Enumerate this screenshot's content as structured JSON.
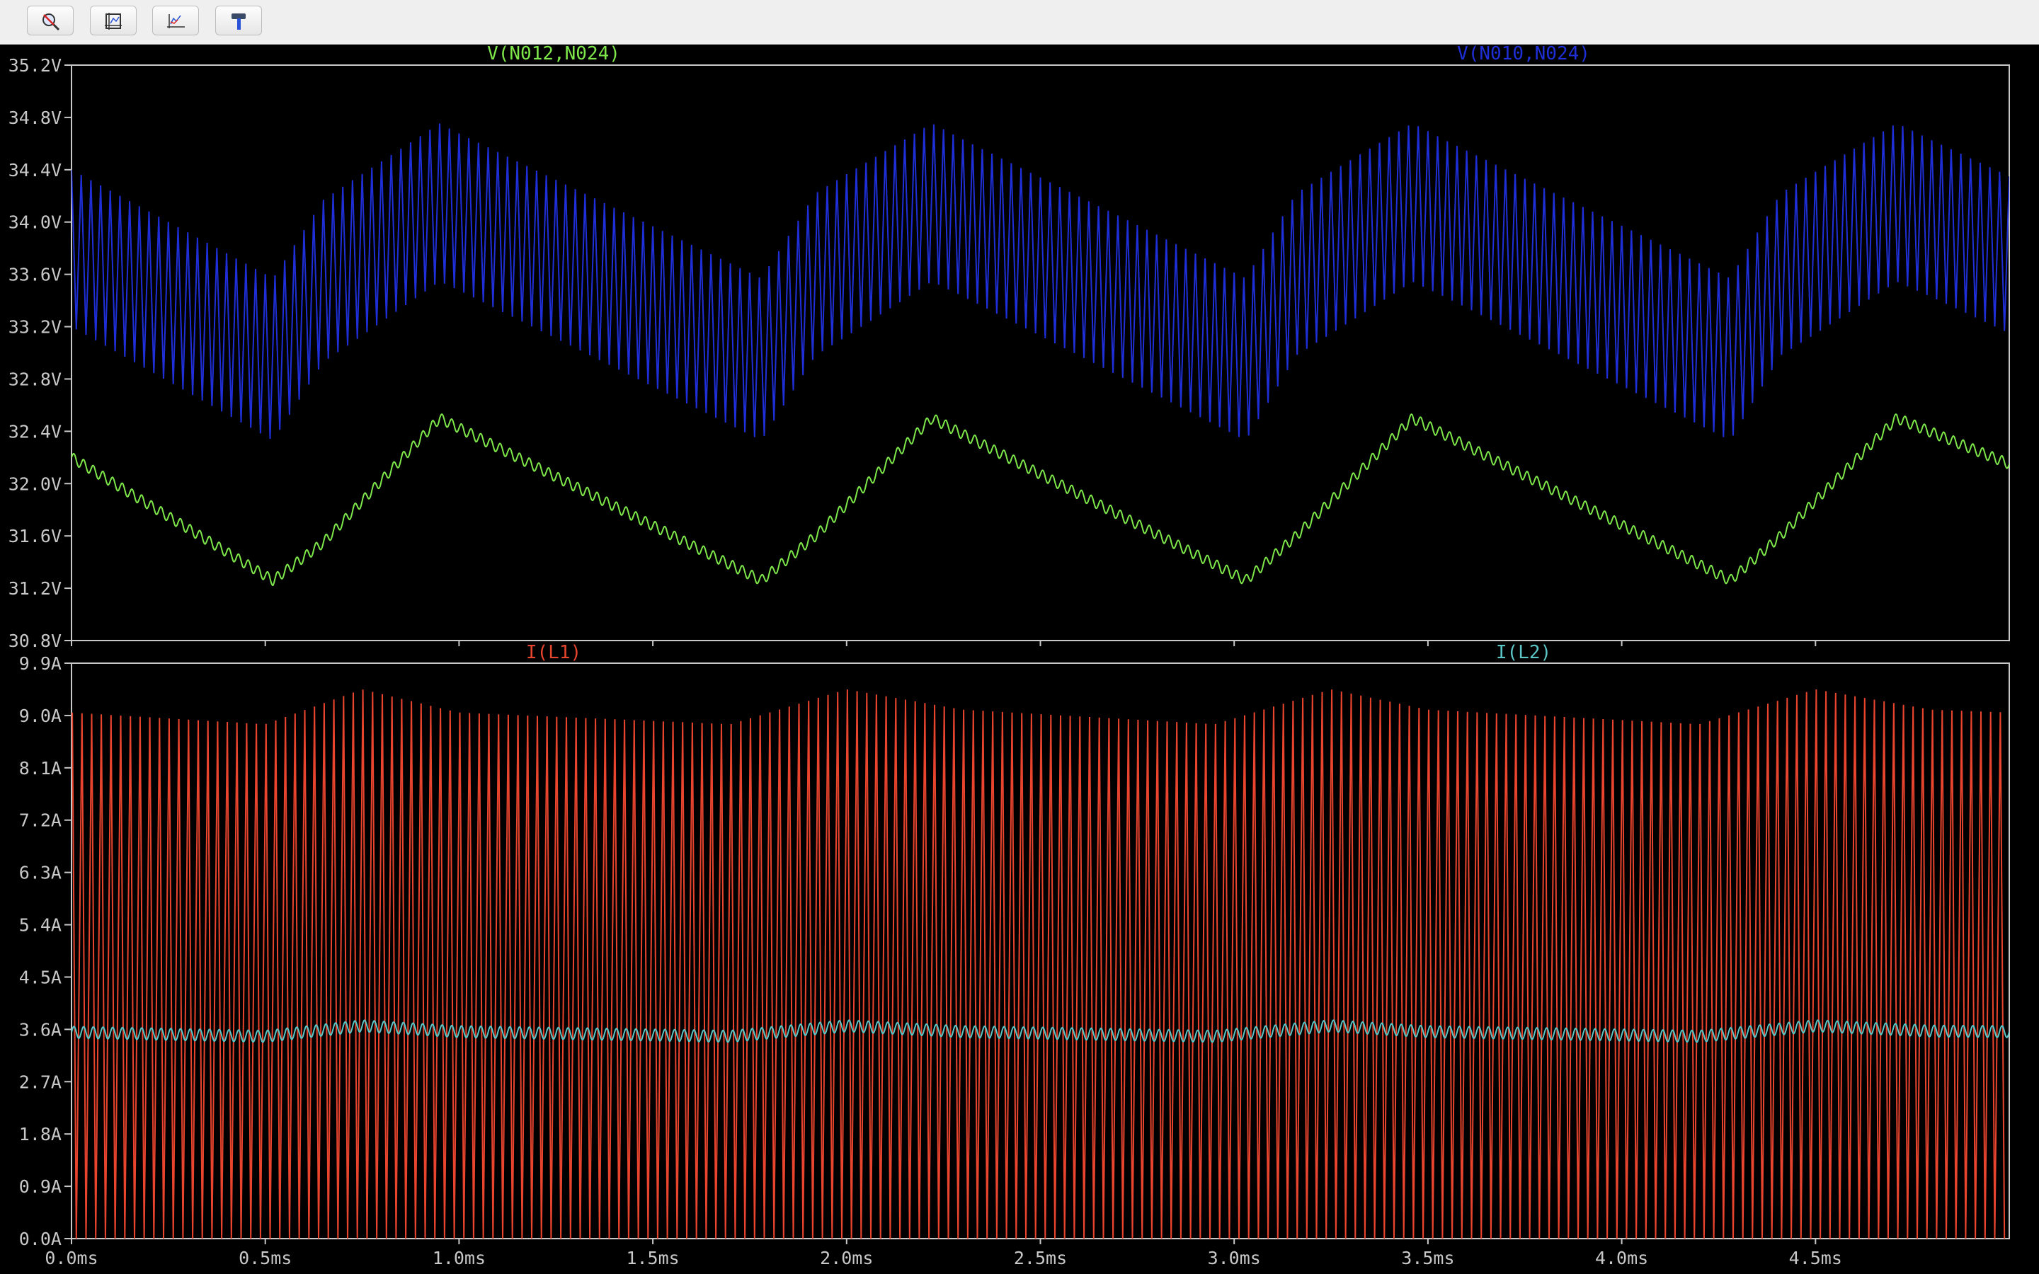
{
  "toolbar": {
    "buttons": [
      {
        "name": "autorange-zoom-icon"
      },
      {
        "name": "zoom-to-fit-icon"
      },
      {
        "name": "pan-waveform-icon"
      },
      {
        "name": "hammer-tool-icon"
      }
    ]
  },
  "colors": {
    "background": "#000000",
    "frame": "#c8c8c8",
    "axis_text": "#c8c8c8",
    "v_n012": "#7ee84a",
    "v_n010": "#1f2fd8",
    "i_l1": "#e8442e",
    "i_l2": "#5cc6c6"
  },
  "chart_data": [
    {
      "type": "line",
      "pane": "top",
      "xlabel": "",
      "ylabel": "",
      "xlim": [
        0,
        5.0
      ],
      "ylim": [
        30.8,
        35.2
      ],
      "x_ticks": [
        0.0,
        0.5,
        1.0,
        1.5,
        2.0,
        2.5,
        3.0,
        3.5,
        4.0,
        4.5
      ],
      "x_tick_labels": [
        "0.0ms",
        "0.5ms",
        "1.0ms",
        "1.5ms",
        "2.0ms",
        "2.5ms",
        "3.0ms",
        "3.5ms",
        "4.0ms",
        "4.5ms"
      ],
      "y_ticks": [
        35.2,
        34.8,
        34.4,
        34.0,
        33.6,
        33.2,
        32.8,
        32.4,
        32.0,
        31.6,
        31.2,
        30.8
      ],
      "y_tick_labels": [
        "35.2V",
        "34.8V",
        "34.4V",
        "34.0V",
        "33.6V",
        "33.2V",
        "32.8V",
        "32.4V",
        "32.0V",
        "31.6V",
        "31.2V",
        "30.8V"
      ],
      "grid": false,
      "series": [
        {
          "name": "V(N012,N024)",
          "color": "#7ee84a",
          "ripple_cycles_per_ms": 40,
          "ripple_amplitude_v": 0.04,
          "envelope": {
            "x": [
              0.0,
              0.52,
              0.65,
              0.95,
              1.78,
              1.92,
              2.22,
              3.03,
              3.16,
              3.46,
              4.28,
              4.41,
              4.71,
              5.0
            ],
            "y": [
              32.2,
              31.26,
              31.55,
              32.5,
              31.26,
              31.6,
              32.5,
              31.26,
              31.6,
              32.5,
              31.26,
              31.6,
              32.5,
              32.15
            ]
          }
        },
        {
          "name": "V(N010,N024)",
          "color": "#1f2fd8",
          "ripple_cycles_per_ms": 40,
          "center": {
            "x": [
              0.0,
              0.52,
              0.65,
              0.95,
              1.78,
              1.92,
              2.22,
              3.03,
              3.16,
              3.46,
              4.28,
              4.41,
              4.71,
              5.0
            ],
            "y": [
              33.8,
              32.95,
              33.55,
              34.15,
              32.95,
              33.6,
              34.15,
              32.95,
              33.6,
              34.15,
              32.95,
              33.6,
              34.15,
              33.75
            ]
          },
          "half_swing": {
            "x": [
              0.0,
              0.52,
              0.72,
              1.0,
              1.78,
              2.0,
              2.3,
              3.03,
              3.25,
              3.55,
              4.28,
              4.5,
              4.8,
              5.0
            ],
            "y": [
              0.6,
              0.62,
              0.62,
              0.6,
              0.62,
              0.62,
              0.6,
              0.62,
              0.62,
              0.6,
              0.62,
              0.62,
              0.6,
              0.6
            ]
          }
        }
      ]
    },
    {
      "type": "line",
      "pane": "bottom",
      "xlabel": "",
      "ylabel": "",
      "xlim": [
        0,
        5.0
      ],
      "ylim": [
        0.0,
        9.9
      ],
      "x_ticks": [
        0.0,
        0.5,
        1.0,
        1.5,
        2.0,
        2.5,
        3.0,
        3.5,
        4.0,
        4.5
      ],
      "x_tick_labels": [
        "0.0ms",
        "0.5ms",
        "1.0ms",
        "1.5ms",
        "2.0ms",
        "2.5ms",
        "3.0ms",
        "3.5ms",
        "4.0ms",
        "4.5ms"
      ],
      "y_ticks": [
        9.9,
        9.0,
        8.1,
        7.2,
        6.3,
        5.4,
        4.5,
        3.6,
        2.7,
        1.8,
        0.9,
        0.0
      ],
      "y_tick_labels": [
        "9.9A",
        "9.0A",
        "8.1A",
        "7.2A",
        "6.3A",
        "5.4A",
        "4.5A",
        "3.6A",
        "2.7A",
        "1.8A",
        "0.9A",
        "0.0A"
      ],
      "grid": false,
      "series": [
        {
          "name": "I(L1)",
          "color": "#e8442e",
          "pulse_cycles_per_ms": 40,
          "peak": {
            "x": [
              0.0,
              0.5,
              0.75,
              1.0,
              1.7,
              2.0,
              2.3,
              2.95,
              3.25,
              3.5,
              4.2,
              4.5,
              4.8,
              5.0
            ],
            "y": [
              9.05,
              8.85,
              9.45,
              9.05,
              8.85,
              9.45,
              9.1,
              8.85,
              9.45,
              9.1,
              8.85,
              9.45,
              9.1,
              9.05
            ]
          },
          "trough": 0.0
        },
        {
          "name": "I(L2)",
          "color": "#5cc6c6",
          "ripple_cycles_per_ms": 40,
          "ripple_amplitude_a": 0.1,
          "level": {
            "x": [
              0.0,
              0.5,
              0.75,
              1.0,
              1.7,
              2.0,
              2.3,
              2.95,
              3.25,
              3.5,
              4.2,
              4.5,
              4.8,
              5.0
            ],
            "y": [
              3.55,
              3.48,
              3.66,
              3.56,
              3.48,
              3.66,
              3.56,
              3.48,
              3.66,
              3.56,
              3.48,
              3.66,
              3.57,
              3.56
            ]
          }
        }
      ]
    }
  ]
}
